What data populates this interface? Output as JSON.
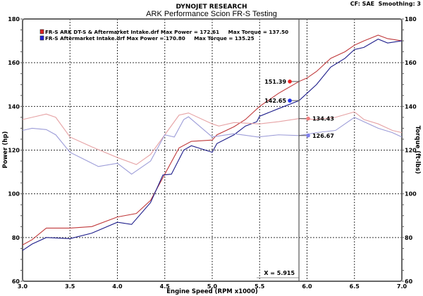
{
  "header": {
    "brand": "DYNOJET RESEARCH",
    "title": "ARK Performance Scion FR-S Testing",
    "settings": "CF: SAE  Smoothing: 3"
  },
  "chart_data": {
    "type": "line",
    "title": "ARK Performance Scion FR-S Testing",
    "xlabel": "Engine Speed (RPM x1000)",
    "ylabel_left": "Power (hp)",
    "ylabel_right": "Torque (ft-lbs)",
    "xlim": [
      3.0,
      7.0
    ],
    "ylim": [
      60,
      180
    ],
    "x_ticks": [
      "3.0",
      "3.5",
      "4.0",
      "4.5",
      "5.0",
      "5.5",
      "6.0",
      "6.5",
      "7.0"
    ],
    "y_ticks": [
      "60",
      "80",
      "100",
      "120",
      "140",
      "160",
      "180"
    ],
    "grid": true,
    "legend_position": "top-left",
    "legend": [
      {
        "text": "FR-S ARK DT-S & Aftermarket Intake.drf Max Power = 172.61     Max Torque = 137.50",
        "color": "#dd2222"
      },
      {
        "text": "FR-S Aftermarket Intake.drf Max Power = 170.80     Max Torque = 135.25",
        "color": "#2222dd"
      }
    ],
    "cursor": {
      "x": 5.915,
      "label": "X = 5.915"
    },
    "cursor_values": [
      {
        "value": "151.39",
        "y": 151.39,
        "color": "#ee2222",
        "side": "left"
      },
      {
        "value": "142.65",
        "y": 142.65,
        "color": "#2233ee",
        "side": "left"
      },
      {
        "value": "134.43",
        "y": 134.43,
        "color": "#f08080",
        "side": "right"
      },
      {
        "value": "126.67",
        "y": 126.67,
        "color": "#8080ee",
        "side": "right"
      }
    ],
    "series": [
      {
        "name": "FR-S ARK DT-S & Aftermarket Intake.drf Power",
        "color": "#c0393b",
        "points": [
          [
            3.0,
            76.6
          ],
          [
            3.1,
            79
          ],
          [
            3.25,
            84.3
          ],
          [
            3.5,
            84.3
          ],
          [
            3.73,
            85
          ],
          [
            4.0,
            89.4
          ],
          [
            4.2,
            91
          ],
          [
            4.35,
            97
          ],
          [
            4.5,
            109
          ],
          [
            4.65,
            121
          ],
          [
            4.78,
            124
          ],
          [
            5.0,
            124.6
          ],
          [
            5.05,
            127
          ],
          [
            5.23,
            130.7
          ],
          [
            5.35,
            134
          ],
          [
            5.5,
            140
          ],
          [
            5.7,
            146
          ],
          [
            5.915,
            151.39
          ],
          [
            6.0,
            153
          ],
          [
            6.1,
            156
          ],
          [
            6.25,
            162
          ],
          [
            6.4,
            165
          ],
          [
            6.5,
            168
          ],
          [
            6.6,
            170
          ],
          [
            6.75,
            172.6
          ],
          [
            6.85,
            171
          ],
          [
            7.0,
            170
          ]
        ]
      },
      {
        "name": "FR-S Aftermarket Intake.drf Power",
        "color": "#1c1c8a",
        "points": [
          [
            3.0,
            74.1
          ],
          [
            3.1,
            77
          ],
          [
            3.25,
            80
          ],
          [
            3.5,
            79.5
          ],
          [
            3.73,
            82
          ],
          [
            4.0,
            87
          ],
          [
            4.15,
            86
          ],
          [
            4.35,
            96
          ],
          [
            4.48,
            108.6
          ],
          [
            4.57,
            109
          ],
          [
            4.7,
            120
          ],
          [
            4.78,
            122
          ],
          [
            5.0,
            119
          ],
          [
            5.05,
            123
          ],
          [
            5.23,
            127
          ],
          [
            5.35,
            131
          ],
          [
            5.47,
            133
          ],
          [
            5.5,
            135.5
          ],
          [
            5.7,
            139
          ],
          [
            5.915,
            142.65
          ],
          [
            6.0,
            146
          ],
          [
            6.1,
            150
          ],
          [
            6.25,
            158
          ],
          [
            6.4,
            162
          ],
          [
            6.5,
            166
          ],
          [
            6.6,
            167
          ],
          [
            6.75,
            170.8
          ],
          [
            6.85,
            169
          ],
          [
            7.0,
            170
          ]
        ]
      },
      {
        "name": "FR-S ARK DT-S & Aftermarket Intake.drf Torque",
        "color": "#e6a2a4",
        "points": [
          [
            3.0,
            134
          ],
          [
            3.1,
            135
          ],
          [
            3.25,
            136.5
          ],
          [
            3.35,
            135
          ],
          [
            3.5,
            126
          ],
          [
            3.73,
            121.5
          ],
          [
            4.0,
            116.6
          ],
          [
            4.2,
            113.4
          ],
          [
            4.35,
            118
          ],
          [
            4.5,
            127
          ],
          [
            4.65,
            136
          ],
          [
            4.75,
            137
          ],
          [
            5.0,
            132
          ],
          [
            5.07,
            131
          ],
          [
            5.23,
            132.6
          ],
          [
            5.5,
            132
          ],
          [
            5.7,
            133
          ],
          [
            5.915,
            134.43
          ],
          [
            6.1,
            134
          ],
          [
            6.3,
            135
          ],
          [
            6.5,
            137.5
          ],
          [
            6.6,
            134
          ],
          [
            6.75,
            132
          ],
          [
            6.9,
            129
          ],
          [
            7.0,
            128
          ]
        ]
      },
      {
        "name": "FR-S Aftermarket Intake.drf Torque",
        "color": "#9c9cd8",
        "points": [
          [
            3.0,
            129
          ],
          [
            3.1,
            130
          ],
          [
            3.25,
            129.4
          ],
          [
            3.35,
            127
          ],
          [
            3.5,
            119
          ],
          [
            3.8,
            112.5
          ],
          [
            4.0,
            114
          ],
          [
            4.15,
            109
          ],
          [
            4.35,
            115
          ],
          [
            4.5,
            127
          ],
          [
            4.6,
            126
          ],
          [
            4.7,
            134
          ],
          [
            4.75,
            135.25
          ],
          [
            5.0,
            126
          ],
          [
            5.23,
            127.5
          ],
          [
            5.48,
            126
          ],
          [
            5.7,
            127
          ],
          [
            5.915,
            126.67
          ],
          [
            6.1,
            128
          ],
          [
            6.3,
            129
          ],
          [
            6.5,
            135
          ],
          [
            6.6,
            133
          ],
          [
            6.75,
            130
          ],
          [
            6.9,
            128
          ],
          [
            7.0,
            126
          ]
        ]
      }
    ]
  }
}
